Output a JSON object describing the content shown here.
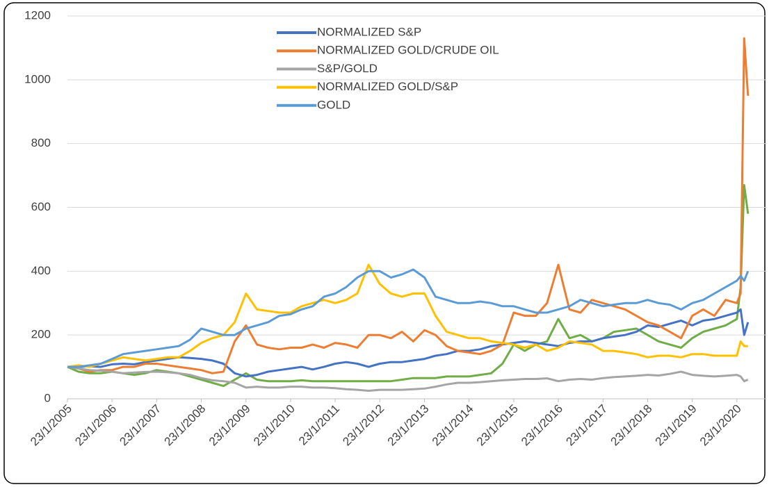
{
  "chart_data": {
    "type": "line",
    "x": [
      "23/1/2005",
      "23/4/2005",
      "23/7/2005",
      "23/10/2005",
      "23/1/2006",
      "23/4/2006",
      "23/7/2006",
      "23/10/2006",
      "23/1/2007",
      "23/4/2007",
      "23/7/2007",
      "23/10/2007",
      "23/1/2008",
      "23/4/2008",
      "23/7/2008",
      "23/10/2008",
      "23/1/2009",
      "23/4/2009",
      "23/7/2009",
      "23/10/2009",
      "23/1/2010",
      "23/4/2010",
      "23/7/2010",
      "23/10/2010",
      "23/1/2011",
      "23/4/2011",
      "23/7/2011",
      "23/10/2011",
      "23/1/2012",
      "23/4/2012",
      "23/7/2012",
      "23/10/2012",
      "23/1/2013",
      "23/4/2013",
      "23/7/2013",
      "23/10/2013",
      "23/1/2014",
      "23/4/2014",
      "23/7/2014",
      "23/10/2014",
      "23/1/2015",
      "23/4/2015",
      "23/7/2015",
      "23/10/2015",
      "23/1/2016",
      "23/4/2016",
      "23/7/2016",
      "23/10/2016",
      "23/1/2017",
      "23/4/2017",
      "23/7/2017",
      "23/10/2017",
      "23/1/2018",
      "23/4/2018",
      "23/7/2018",
      "23/10/2018",
      "23/1/2019",
      "23/4/2019",
      "23/7/2019",
      "23/10/2019",
      "23/1/2020",
      "23/2/2020",
      "23/3/2020",
      "23/4/2020"
    ],
    "series": [
      {
        "name": "NORMALIZED S&P",
        "color": "#4472c4",
        "values": [
          100,
          100,
          102,
          100,
          108,
          110,
          108,
          115,
          120,
          125,
          130,
          128,
          125,
          120,
          110,
          80,
          70,
          75,
          85,
          90,
          95,
          100,
          92,
          100,
          110,
          115,
          110,
          100,
          110,
          115,
          115,
          120,
          125,
          135,
          140,
          150,
          150,
          155,
          165,
          170,
          175,
          180,
          175,
          170,
          165,
          175,
          180,
          180,
          190,
          195,
          200,
          210,
          230,
          225,
          235,
          245,
          230,
          245,
          250,
          260,
          270,
          280,
          200,
          240
        ]
      },
      {
        "name": "NORMALIZED GOLD/CRUDE OIL",
        "color": "#ed7d31",
        "values": [
          100,
          95,
          85,
          90,
          90,
          100,
          100,
          110,
          110,
          105,
          100,
          95,
          90,
          80,
          85,
          180,
          230,
          170,
          160,
          155,
          160,
          160,
          170,
          160,
          175,
          170,
          160,
          200,
          200,
          190,
          210,
          180,
          215,
          200,
          165,
          150,
          145,
          140,
          150,
          170,
          270,
          260,
          260,
          300,
          420,
          280,
          270,
          310,
          300,
          290,
          280,
          260,
          240,
          230,
          210,
          190,
          260,
          280,
          260,
          310,
          300,
          330,
          1130,
          950
        ]
      },
      {
        "name": "S&P/GOLD",
        "color": "#a5a5a5",
        "values": [
          100,
          95,
          90,
          88,
          85,
          80,
          82,
          84,
          85,
          83,
          80,
          75,
          65,
          58,
          55,
          50,
          35,
          38,
          35,
          35,
          38,
          38,
          35,
          35,
          33,
          30,
          28,
          25,
          28,
          28,
          28,
          30,
          32,
          38,
          45,
          50,
          50,
          52,
          55,
          58,
          60,
          62,
          62,
          64,
          55,
          60,
          62,
          60,
          65,
          68,
          70,
          72,
          75,
          73,
          78,
          85,
          75,
          72,
          70,
          72,
          75,
          70,
          55,
          60
        ]
      },
      {
        "name": "NORMALIZED GOLD/S&P",
        "color": "#ffc000",
        "values": [
          100,
          105,
          100,
          110,
          120,
          130,
          125,
          120,
          125,
          130,
          130,
          150,
          175,
          190,
          200,
          240,
          330,
          280,
          275,
          270,
          270,
          290,
          300,
          310,
          300,
          310,
          330,
          420,
          360,
          330,
          320,
          330,
          330,
          260,
          210,
          200,
          190,
          190,
          180,
          175,
          170,
          160,
          170,
          150,
          160,
          180,
          175,
          170,
          150,
          150,
          145,
          140,
          130,
          135,
          135,
          130,
          140,
          140,
          135,
          135,
          135,
          180,
          165,
          165
        ]
      },
      {
        "name": "GOLD",
        "color": "#5b9bd5",
        "values": [
          100,
          100,
          105,
          110,
          125,
          140,
          145,
          150,
          155,
          160,
          165,
          185,
          220,
          210,
          200,
          200,
          220,
          230,
          240,
          260,
          265,
          280,
          290,
          320,
          330,
          350,
          380,
          400,
          400,
          380,
          390,
          405,
          380,
          320,
          310,
          300,
          300,
          305,
          300,
          290,
          290,
          280,
          270,
          270,
          280,
          290,
          310,
          300,
          290,
          295,
          300,
          300,
          310,
          300,
          295,
          280,
          300,
          310,
          330,
          350,
          370,
          385,
          370,
          400
        ]
      },
      {
        "color": "#70ad47",
        "values": [
          100,
          85,
          80,
          80,
          85,
          80,
          75,
          80,
          90,
          85,
          80,
          70,
          60,
          50,
          40,
          60,
          80,
          60,
          55,
          55,
          55,
          58,
          55,
          55,
          55,
          55,
          55,
          55,
          55,
          55,
          60,
          65,
          65,
          65,
          70,
          70,
          70,
          75,
          80,
          110,
          170,
          150,
          170,
          180,
          250,
          190,
          200,
          180,
          190,
          210,
          215,
          220,
          200,
          180,
          170,
          160,
          190,
          210,
          220,
          230,
          250,
          350,
          670,
          580
        ]
      }
    ],
    "xlim": [
      "23/1/2005",
      "23/9/2020"
    ],
    "xticks": [
      "23/1/2005",
      "23/1/2006",
      "23/1/2007",
      "23/1/2008",
      "23/1/2009",
      "23/1/2010",
      "23/1/2011",
      "23/1/2012",
      "23/1/2013",
      "23/1/2014",
      "23/1/2015",
      "23/1/2016",
      "23/1/2017",
      "23/1/2018",
      "23/1/2019",
      "23/1/2020"
    ],
    "ylim": [
      0,
      1200
    ],
    "yticks": [
      0,
      200,
      400,
      600,
      800,
      1000,
      1200
    ],
    "grid": true,
    "legend": "top"
  }
}
